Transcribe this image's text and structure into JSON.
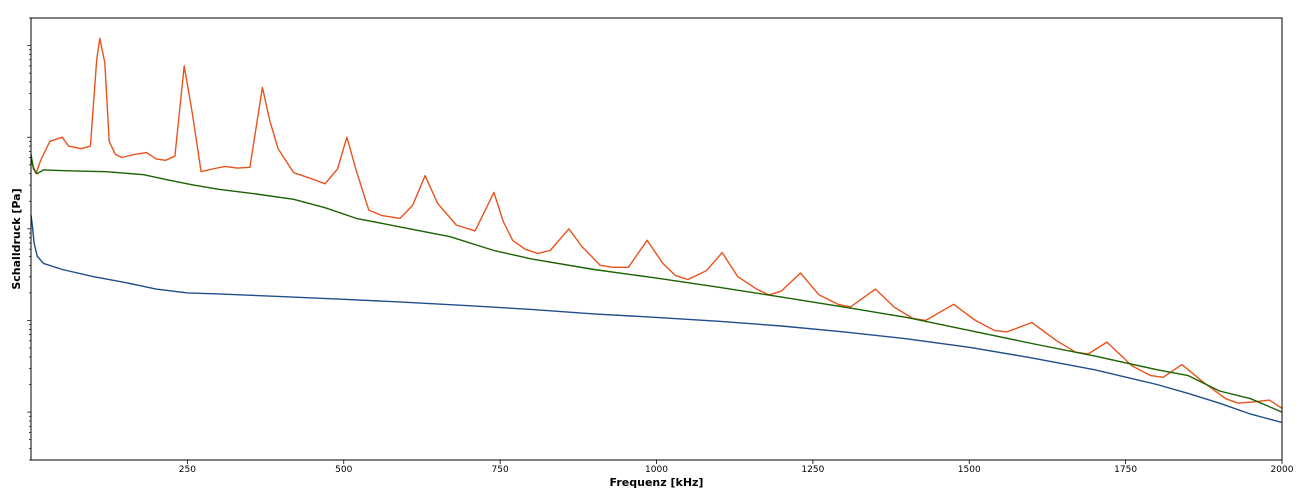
{
  "chart_data": {
    "type": "line",
    "title": "",
    "xlabel": "Frequenz [kHz]",
    "ylabel": "Schalldruck [Pa]",
    "xlim": [
      0,
      2000
    ],
    "yscale": "log",
    "ylim": [
      3e-06,
      0.2
    ],
    "x_ticks": [
      250,
      500,
      750,
      1000,
      1250,
      1500,
      1750,
      2000
    ],
    "x_tick_labels": [
      "250",
      "500",
      "750",
      "1000",
      "1250",
      "1500",
      "1750",
      "2000"
    ],
    "y_tick_labels_visible": false,
    "grid": false,
    "legend": "none",
    "series": [
      {
        "color": "#e8531c",
        "x": [
          0,
          8,
          15,
          30,
          50,
          60,
          80,
          95,
          105,
          110,
          118,
          125,
          135,
          145,
          165,
          185,
          200,
          215,
          230,
          245,
          258,
          272,
          290,
          310,
          330,
          350,
          370,
          382,
          395,
          420,
          445,
          470,
          490,
          505,
          520,
          540,
          560,
          590,
          610,
          630,
          650,
          680,
          710,
          740,
          755,
          770,
          790,
          810,
          830,
          860,
          880,
          910,
          930,
          955,
          985,
          1010,
          1030,
          1050,
          1080,
          1105,
          1130,
          1160,
          1180,
          1200,
          1230,
          1260,
          1290,
          1310,
          1350,
          1380,
          1410,
          1430,
          1475,
          1510,
          1540,
          1560,
          1600,
          1640,
          1670,
          1690,
          1720,
          1760,
          1790,
          1810,
          1840,
          1875,
          1910,
          1930,
          1960,
          1980,
          2000
        ],
        "y": [
          0.0055,
          0.004,
          0.0055,
          0.009,
          0.01,
          0.008,
          0.0075,
          0.008,
          0.07,
          0.12,
          0.065,
          0.009,
          0.0065,
          0.006,
          0.0065,
          0.0068,
          0.0058,
          0.0056,
          0.0062,
          0.06,
          0.018,
          0.0042,
          0.0045,
          0.0048,
          0.0046,
          0.0047,
          0.035,
          0.015,
          0.0075,
          0.0041,
          0.0036,
          0.0031,
          0.0045,
          0.01,
          0.0043,
          0.0016,
          0.0014,
          0.0013,
          0.0018,
          0.0038,
          0.0019,
          0.0011,
          0.00095,
          0.0025,
          0.0012,
          0.00075,
          0.0006,
          0.00054,
          0.00058,
          0.001,
          0.00065,
          0.0004,
          0.00038,
          0.00038,
          0.00075,
          0.00042,
          0.00031,
          0.00028,
          0.00035,
          0.00055,
          0.0003,
          0.00022,
          0.00019,
          0.00021,
          0.00033,
          0.00019,
          0.00015,
          0.00014,
          0.00022,
          0.00014,
          0.000105,
          0.0001,
          0.00015,
          0.0001,
          7.8e-05,
          7.5e-05,
          9.5e-05,
          6e-05,
          4.5e-05,
          4.3e-05,
          5.8e-05,
          3.2e-05,
          2.5e-05,
          2.4e-05,
          3.3e-05,
          2.1e-05,
          1.4e-05,
          1.25e-05,
          1.3e-05,
          1.35e-05,
          1.1e-05
        ]
      },
      {
        "color": "#1a6300",
        "x": [
          0,
          4,
          10,
          20,
          60,
          120,
          180,
          220,
          260,
          300,
          360,
          420,
          470,
          520,
          590,
          670,
          740,
          800,
          900,
          1000,
          1100,
          1200,
          1300,
          1400,
          1500,
          1600,
          1700,
          1800,
          1850,
          1900,
          1950,
          2000
        ],
        "y": [
          0.0065,
          0.0045,
          0.004,
          0.0044,
          0.0043,
          0.0042,
          0.0039,
          0.0034,
          0.003,
          0.0027,
          0.0024,
          0.0021,
          0.0017,
          0.0013,
          0.00105,
          0.00082,
          0.00058,
          0.00047,
          0.00036,
          0.00029,
          0.00023,
          0.00018,
          0.00014,
          0.000108,
          7.8e-05,
          5.6e-05,
          4.1e-05,
          2.9e-05,
          2.5e-05,
          1.7e-05,
          1.4e-05,
          1e-05
        ]
      },
      {
        "color": "#1f4e8c",
        "x": [
          0,
          2,
          5,
          10,
          20,
          50,
          100,
          150,
          200,
          250,
          300,
          400,
          500,
          600,
          700,
          800,
          900,
          1000,
          1100,
          1200,
          1300,
          1400,
          1500,
          1600,
          1700,
          1800,
          1850,
          1900,
          1950,
          2000
        ],
        "y": [
          0.0014,
          0.0011,
          0.0007,
          0.0005,
          0.00042,
          0.00036,
          0.0003,
          0.00026,
          0.00022,
          0.0002,
          0.000195,
          0.000182,
          0.00017,
          0.000158,
          0.000145,
          0.000132,
          0.000118,
          0.000108,
          9.8e-05,
          8.7e-05,
          7.5e-05,
          6.3e-05,
          5.1e-05,
          3.9e-05,
          2.9e-05,
          2e-05,
          1.6e-05,
          1.25e-05,
          9.5e-06,
          7.7e-06
        ]
      }
    ]
  }
}
